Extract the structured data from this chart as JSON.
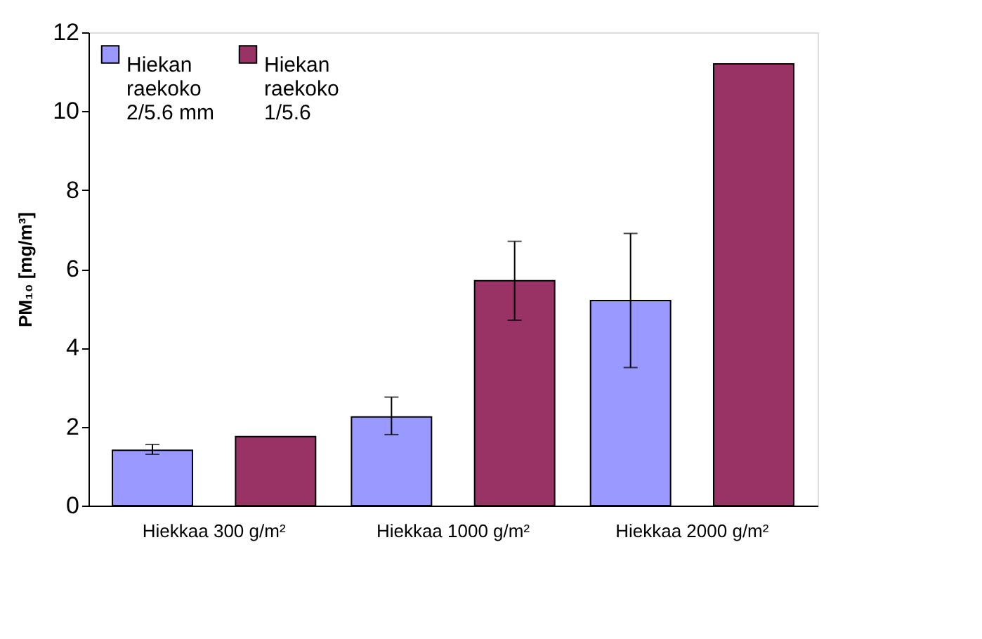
{
  "chart_data": {
    "type": "bar",
    "ylabel": "PM₁₀ [mg/m³]",
    "categories": [
      "Hiekkaa 300 g/m²",
      "Hiekkaa 1000 g/m²",
      "Hiekkaa 2000 g/m²"
    ],
    "series": [
      {
        "name": "Hiekan raekoko 2/5.6 mm",
        "color": "#9999ff",
        "values": [
          1.4,
          2.25,
          5.2
        ],
        "errors": [
          [
            1.3,
            1.55
          ],
          [
            1.8,
            2.75
          ],
          [
            3.5,
            6.9
          ]
        ]
      },
      {
        "name": "Hiekan raekoko 1/5.6",
        "color": "#993366",
        "values": [
          1.75,
          5.7,
          11.2
        ],
        "errors": [
          null,
          [
            4.7,
            6.7
          ],
          null
        ]
      }
    ],
    "ylim": [
      0,
      12
    ],
    "yticks": [
      0,
      2,
      4,
      6,
      8,
      10,
      12
    ],
    "grid": false,
    "legend": "top left"
  }
}
